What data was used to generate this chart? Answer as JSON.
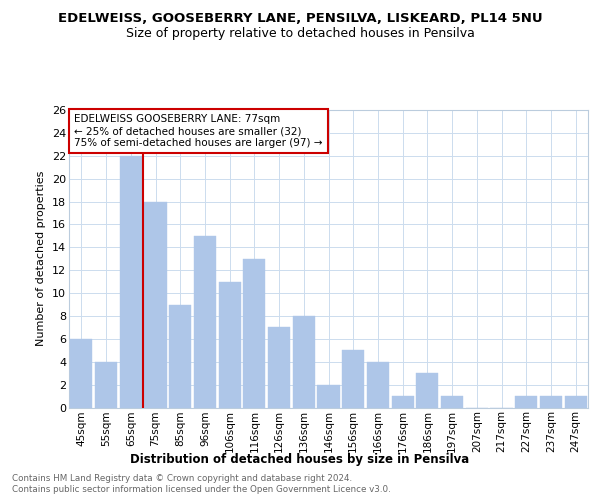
{
  "title": "EDELWEISS, GOOSEBERRY LANE, PENSILVA, LISKEARD, PL14 5NU",
  "subtitle": "Size of property relative to detached houses in Pensilva",
  "xlabel": "Distribution of detached houses by size in Pensilva",
  "ylabel": "Number of detached properties",
  "categories": [
    "45sqm",
    "55sqm",
    "65sqm",
    "75sqm",
    "85sqm",
    "96sqm",
    "106sqm",
    "116sqm",
    "126sqm",
    "136sqm",
    "146sqm",
    "156sqm",
    "166sqm",
    "176sqm",
    "186sqm",
    "197sqm",
    "207sqm",
    "217sqm",
    "227sqm",
    "237sqm",
    "247sqm"
  ],
  "values": [
    6,
    4,
    22,
    18,
    9,
    15,
    11,
    13,
    7,
    8,
    2,
    5,
    4,
    1,
    3,
    1,
    0,
    0,
    1,
    1,
    1
  ],
  "bar_color": "#aec6e8",
  "vline_x": 2.5,
  "vline_color": "#cc0000",
  "annotation_text_line1": "EDELWEISS GOOSEBERRY LANE: 77sqm",
  "annotation_text_line2": "← 25% of detached houses are smaller (32)",
  "annotation_text_line3": "75% of semi-detached houses are larger (97) →",
  "ylim": [
    0,
    26
  ],
  "yticks": [
    0,
    2,
    4,
    6,
    8,
    10,
    12,
    14,
    16,
    18,
    20,
    22,
    24,
    26
  ],
  "footer_line1": "Contains HM Land Registry data © Crown copyright and database right 2024.",
  "footer_line2": "Contains public sector information licensed under the Open Government Licence v3.0.",
  "background_color": "#ffffff",
  "grid_color": "#ccdcee"
}
